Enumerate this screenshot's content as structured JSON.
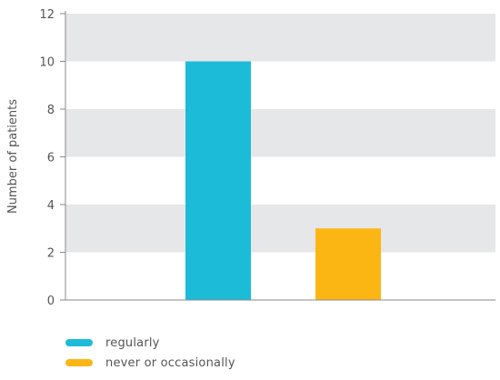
{
  "chart_data": {
    "type": "bar",
    "categories": [
      "regularly",
      "never or occasionally"
    ],
    "values": [
      10,
      3
    ],
    "colors": [
      "#1cbcd8",
      "#fcb614"
    ],
    "title": "",
    "xlabel": "",
    "ylabel": "Number of patients",
    "ylim": [
      0,
      12
    ],
    "yticks": [
      0,
      2,
      4,
      6,
      8,
      10,
      12
    ],
    "grid": "alternating horizontal bands",
    "band_color": "#e6e7e8",
    "legend_placement": "bottom-left",
    "legend": [
      {
        "label": "regularly",
        "color": "#1cbcd8"
      },
      {
        "label": "never or occasionally",
        "color": "#fcb614"
      }
    ]
  }
}
